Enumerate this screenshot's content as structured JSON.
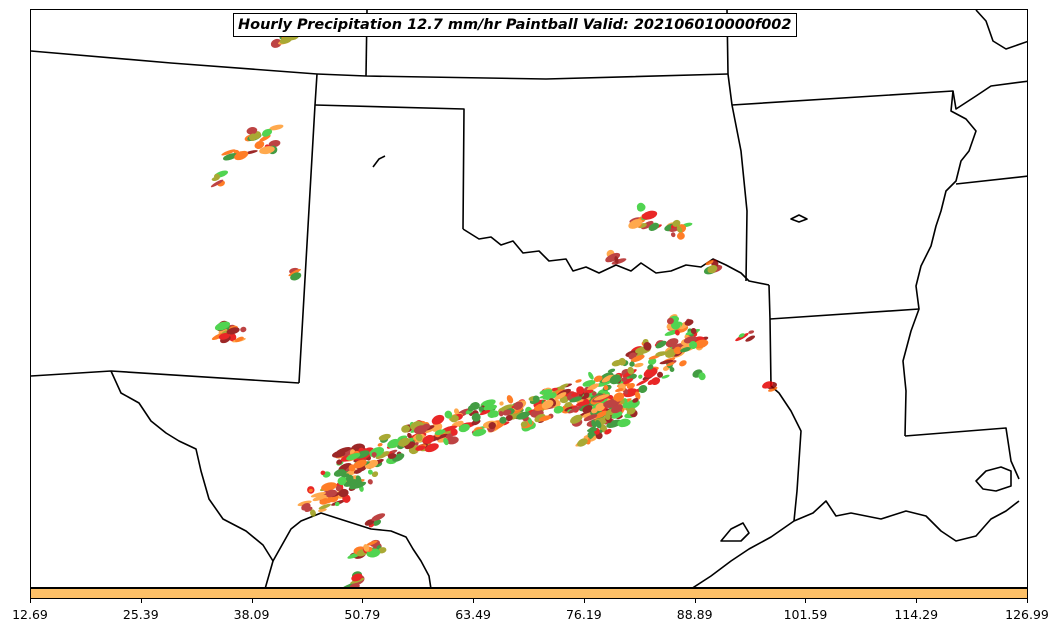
{
  "title": "Hourly Precipitation 12.7 mm/hr Paintball Valid: 202106010000f002",
  "colorbar": {
    "color": "#fdc067",
    "ticks": [
      "12.69",
      "25.39",
      "38.09",
      "50.79",
      "63.49",
      "76.19",
      "88.89",
      "101.59",
      "114.29",
      "126.99"
    ]
  },
  "map": {
    "region": "southern-central-united-states",
    "boundary_color": "#000000",
    "paintball_colors": [
      "#ff6600",
      "#ff9a2e",
      "#e60000",
      "#8b0000",
      "#9a9a10",
      "#32cd32",
      "#228b22",
      "#b22222"
    ]
  }
}
